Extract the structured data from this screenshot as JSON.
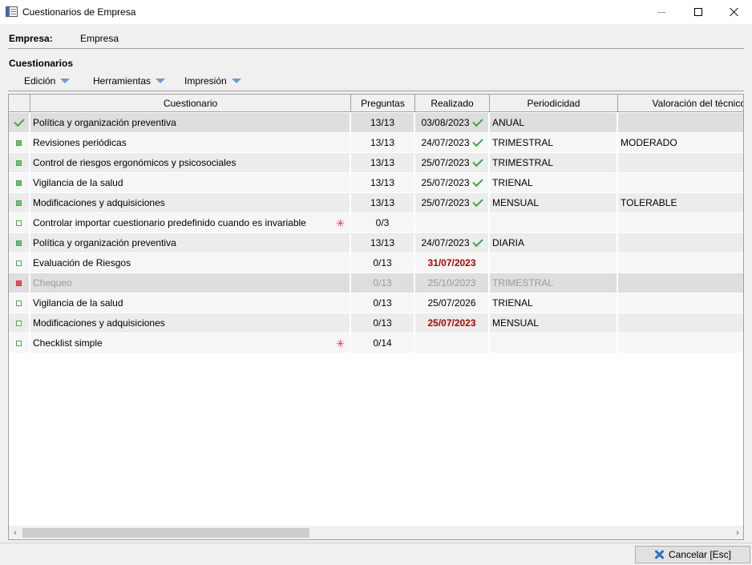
{
  "window": {
    "title": "Cuestionarios de Empresa"
  },
  "empresa": {
    "label": "Empresa:",
    "value": "Empresa"
  },
  "section": {
    "title": "Cuestionarios"
  },
  "menu": {
    "items": [
      {
        "label": "Edición"
      },
      {
        "label": "Herramientas"
      },
      {
        "label": "Impresión"
      }
    ]
  },
  "table": {
    "columns": [
      "",
      "Cuestionario",
      "Preguntas",
      "Realizado",
      "Periodicidad",
      "Valoración del técnico"
    ],
    "rows": [
      {
        "status": "check-icon",
        "name": "Política y organización preventiva",
        "preguntas": "13/13",
        "realizado": "03/08/2023",
        "done": true,
        "periodicidad": "ANUAL",
        "valoracion": "",
        "required": false,
        "style": "sel"
      },
      {
        "status": "green-square",
        "name": "Revisiones periódicas",
        "preguntas": "13/13",
        "realizado": "24/07/2023",
        "done": true,
        "periodicidad": "TRIMESTRAL",
        "valoracion": "MODERADO",
        "required": false,
        "style": "plain"
      },
      {
        "status": "green-square",
        "name": "Control de riesgos ergonómicos y psicosociales",
        "preguntas": "13/13",
        "realizado": "25/07/2023",
        "done": true,
        "periodicidad": "TRIMESTRAL",
        "valoracion": "",
        "required": false,
        "style": "alt"
      },
      {
        "status": "green-square",
        "name": "Vigilancia de la salud",
        "preguntas": "13/13",
        "realizado": "25/07/2023",
        "done": true,
        "periodicidad": "TRIENAL",
        "valoracion": "",
        "required": false,
        "style": "plain"
      },
      {
        "status": "green-square",
        "name": "Modificaciones y adquisiciones",
        "preguntas": "13/13",
        "realizado": "25/07/2023",
        "done": true,
        "periodicidad": "MENSUAL",
        "valoracion": "TOLERABLE",
        "required": false,
        "style": "alt"
      },
      {
        "status": "empty-square",
        "name": "Controlar importar cuestionario predefinido cuando es invariable",
        "preguntas": "0/3",
        "realizado": "",
        "done": false,
        "periodicidad": "",
        "valoracion": "",
        "required": true,
        "style": "plain"
      },
      {
        "status": "green-square",
        "name": "Política y organización preventiva",
        "preguntas": "13/13",
        "realizado": "24/07/2023",
        "done": true,
        "periodicidad": "DIARIA",
        "valoracion": "",
        "required": false,
        "style": "alt"
      },
      {
        "status": "empty-square",
        "name": "Evaluación de Riesgos",
        "preguntas": "0/13",
        "realizado": "31/07/2023",
        "done": false,
        "overdue": true,
        "periodicidad": "",
        "valoracion": "",
        "required": false,
        "style": "plain"
      },
      {
        "status": "red-square",
        "name": "Chequeo",
        "preguntas": "0/13",
        "realizado": "25/10/2023",
        "done": false,
        "disabled": true,
        "periodicidad": "TRIMESTRAL",
        "valoracion": "",
        "required": false,
        "style": "sel"
      },
      {
        "status": "empty-square",
        "name": "Vigilancia de la salud",
        "preguntas": "0/13",
        "realizado": "25/07/2026",
        "done": false,
        "periodicidad": "TRIENAL",
        "valoracion": "",
        "required": false,
        "style": "plain"
      },
      {
        "status": "empty-square",
        "name": "Modificaciones y adquisiciones",
        "preguntas": "0/13",
        "realizado": "25/07/2023",
        "done": false,
        "overdue": true,
        "periodicidad": "MENSUAL",
        "valoracion": "",
        "required": false,
        "style": "alt"
      },
      {
        "status": "empty-square",
        "name": "Checklist simple",
        "preguntas": "0/14",
        "realizado": "",
        "done": false,
        "periodicidad": "",
        "valoracion": "",
        "required": true,
        "style": "plain"
      }
    ]
  },
  "footer": {
    "cancel_label": "Cancelar [Esc]"
  },
  "colors": {
    "check": "#3aa84a",
    "overdue": "#b00000",
    "required_star": "#e0323c",
    "accent": "#2d6fc4"
  }
}
